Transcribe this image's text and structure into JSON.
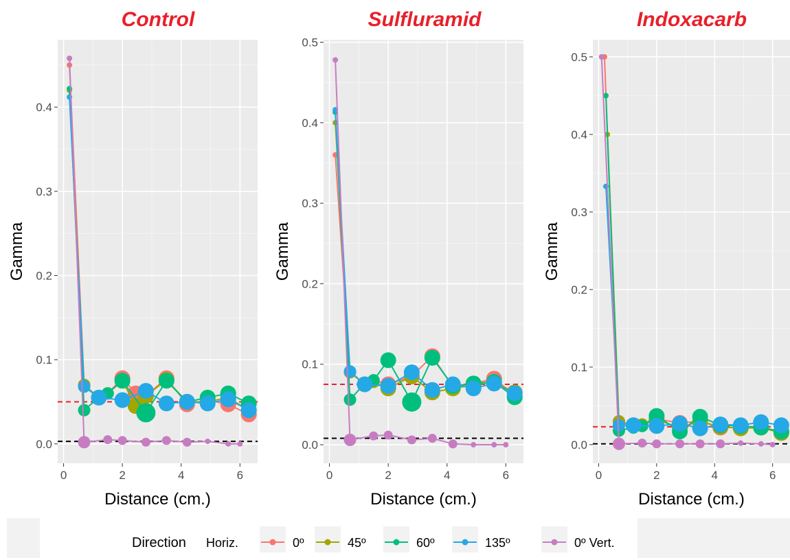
{
  "legend": {
    "title": "Direction",
    "entries": [
      {
        "label": "Horiz.",
        "kind": "text"
      },
      {
        "label": "0º",
        "color": "#F8766D"
      },
      {
        "label": "45º",
        "color": "#A3A500"
      },
      {
        "label": "60º",
        "color": "#00BF7D"
      },
      {
        "label": "135º",
        "color": "#25A8E6"
      },
      {
        "label": "0º Vert.",
        "color": "#C77CC2"
      }
    ]
  },
  "chart_data": [
    {
      "type": "scatter",
      "title": "Control",
      "xlabel": "Distance (cm.)",
      "ylabel": "Gamma",
      "xlim": [
        -0.2,
        6.6
      ],
      "ylim": [
        -0.023,
        0.48
      ],
      "xticks": [
        0,
        2,
        4,
        6
      ],
      "xtick_labels": [
        "0",
        "2",
        "4",
        "6"
      ],
      "yticks": [
        0.0,
        0.1,
        0.2,
        0.3,
        0.4
      ],
      "ytick_labels": [
        "0.0",
        "0.1",
        "0.2",
        "0.3",
        "0.4"
      ],
      "reference_lines": [
        {
          "y": 0.05,
          "color": "#e8202a",
          "style": "dashed"
        },
        {
          "y": 0.003,
          "color": "#000000",
          "style": "dashed"
        }
      ],
      "series": [
        {
          "name": "0º",
          "color": "#F8766D",
          "x": [
            0.2,
            0.7,
            1.2,
            1.5,
            2.0,
            2.45,
            2.8,
            3.5,
            4.2,
            4.9,
            5.6,
            6.3
          ],
          "y": [
            0.45,
            0.07,
            0.055,
            0.06,
            0.078,
            0.06,
            0.057,
            0.078,
            0.047,
            0.052,
            0.047,
            0.035
          ],
          "size": [
            1,
            3,
            3,
            3,
            4,
            4,
            4,
            4,
            4,
            4,
            4,
            4
          ]
        },
        {
          "name": "45º",
          "color": "#A3A500",
          "x": [
            0.2,
            0.7,
            1.2,
            1.5,
            2.0,
            2.45,
            2.8,
            3.5,
            4.2,
            4.9,
            5.6,
            6.3
          ],
          "y": [
            0.42,
            0.07,
            0.055,
            0.06,
            0.075,
            0.045,
            0.057,
            0.076,
            0.05,
            0.05,
            0.055,
            0.04
          ],
          "size": [
            1,
            3,
            3,
            3,
            4,
            4,
            4,
            4,
            4,
            4,
            4,
            4
          ]
        },
        {
          "name": "60º",
          "color": "#00BF7D",
          "x": [
            0.2,
            0.7,
            1.2,
            1.5,
            2.0,
            2.8,
            3.5,
            4.2,
            4.9,
            5.6,
            6.3
          ],
          "y": [
            0.422,
            0.04,
            0.055,
            0.06,
            0.075,
            0.037,
            0.075,
            0.05,
            0.055,
            0.06,
            0.048
          ],
          "size": [
            1,
            3,
            3,
            3,
            4,
            5,
            4,
            4,
            4,
            4,
            4
          ]
        },
        {
          "name": "135º",
          "color": "#25A8E6",
          "x": [
            0.2,
            0.7,
            1.2,
            2.0,
            2.8,
            3.5,
            4.2,
            4.9,
            5.6,
            6.3
          ],
          "y": [
            0.412,
            0.068,
            0.055,
            0.052,
            0.063,
            0.048,
            0.05,
            0.048,
            0.053,
            0.04
          ],
          "size": [
            1,
            3,
            4,
            4,
            4,
            4,
            4,
            4,
            4,
            4
          ]
        },
        {
          "name": "0º Vert.",
          "color": "#C77CC2",
          "x": [
            0.2,
            0.7,
            1.5,
            2.0,
            2.8,
            3.5,
            4.2,
            4.9,
            5.6,
            6.0
          ],
          "y": [
            0.458,
            0.002,
            0.005,
            0.004,
            0.002,
            0.004,
            0.002,
            0.003,
            0.0,
            0.0
          ],
          "size": [
            1,
            3,
            2,
            2,
            2,
            2,
            2,
            1,
            1,
            1
          ]
        }
      ]
    },
    {
      "type": "scatter",
      "title": "Sulfluramid",
      "xlabel": "Distance (cm.)",
      "ylabel": "Gamma",
      "xlim": [
        -0.2,
        6.6
      ],
      "ylim": [
        -0.023,
        0.503
      ],
      "xticks": [
        0,
        2,
        4,
        6
      ],
      "xtick_labels": [
        "0",
        "2",
        "4",
        "6"
      ],
      "yticks": [
        0.0,
        0.1,
        0.2,
        0.3,
        0.4,
        0.5
      ],
      "ytick_labels": [
        "0.0",
        "0.1",
        "0.2",
        "0.3",
        "0.4",
        "0.5"
      ],
      "reference_lines": [
        {
          "y": 0.075,
          "color": "#e8202a",
          "style": "dashed"
        },
        {
          "y": 0.008,
          "color": "#000000",
          "style": "dashed"
        }
      ],
      "series": [
        {
          "name": "0º",
          "color": "#F8766D",
          "x": [
            0.2,
            0.7,
            1.2,
            1.5,
            2.0,
            2.8,
            3.5,
            4.2,
            4.9,
            5.6,
            6.3
          ],
          "y": [
            0.36,
            0.09,
            0.075,
            0.08,
            0.075,
            0.085,
            0.11,
            0.072,
            0.076,
            0.082,
            0.062
          ],
          "size": [
            1,
            3,
            3,
            3,
            4,
            4,
            4,
            4,
            4,
            4,
            4
          ]
        },
        {
          "name": "45º",
          "color": "#A3A500",
          "x": [
            0.2,
            0.7,
            1.2,
            1.5,
            2.0,
            2.8,
            3.5,
            4.2,
            4.9,
            5.6,
            6.3
          ],
          "y": [
            0.4,
            0.09,
            0.075,
            0.078,
            0.07,
            0.085,
            0.065,
            0.07,
            0.074,
            0.078,
            0.065
          ],
          "size": [
            1,
            3,
            3,
            3,
            4,
            4,
            4,
            4,
            4,
            4,
            4
          ]
        },
        {
          "name": "60º",
          "color": "#00BF7D",
          "x": [
            0.2,
            0.7,
            1.2,
            1.5,
            2.0,
            2.8,
            3.5,
            4.2,
            4.9,
            5.6,
            6.3
          ],
          "y": [
            0.413,
            0.056,
            0.076,
            0.08,
            0.105,
            0.053,
            0.108,
            0.073,
            0.076,
            0.078,
            0.059
          ],
          "size": [
            1,
            3,
            3,
            3,
            4,
            5,
            4,
            4,
            4,
            4,
            4
          ]
        },
        {
          "name": "135º",
          "color": "#25A8E6",
          "x": [
            0.2,
            0.7,
            1.2,
            2.0,
            2.8,
            3.5,
            4.2,
            4.9,
            5.6,
            6.3
          ],
          "y": [
            0.416,
            0.091,
            0.075,
            0.073,
            0.09,
            0.068,
            0.075,
            0.07,
            0.076,
            0.064
          ],
          "size": [
            1,
            3,
            4,
            4,
            4,
            4,
            4,
            4,
            4,
            4
          ]
        },
        {
          "name": "0º Vert.",
          "color": "#C77CC2",
          "x": [
            0.2,
            0.7,
            1.5,
            2.0,
            2.8,
            3.5,
            4.2,
            4.9,
            5.6,
            6.0
          ],
          "y": [
            0.478,
            0.006,
            0.011,
            0.012,
            0.006,
            0.008,
            0.001,
            0.0,
            0.0,
            0.0
          ],
          "size": [
            1,
            3,
            2,
            2,
            2,
            2,
            2,
            1,
            1,
            1
          ]
        }
      ]
    },
    {
      "type": "scatter",
      "title": "Indoxacarb",
      "xlabel": "Distance (cm.)",
      "ylabel": "Gamma",
      "xlim": [
        -0.2,
        6.6
      ],
      "ylim": [
        -0.024,
        0.522
      ],
      "xticks": [
        0,
        2,
        4,
        6
      ],
      "xtick_labels": [
        "0",
        "2",
        "4",
        "6"
      ],
      "yticks": [
        0.0,
        0.1,
        0.2,
        0.3,
        0.4,
        0.5
      ],
      "ytick_labels": [
        "0.0",
        "0.1",
        "0.2",
        "0.3",
        "0.4",
        "0.5"
      ],
      "reference_lines": [
        {
          "y": 0.023,
          "color": "#e8202a",
          "style": "dashed"
        },
        {
          "y": 0.001,
          "color": "#000000",
          "style": "dashed"
        }
      ],
      "series": [
        {
          "name": "0º",
          "color": "#F8766D",
          "x": [
            0.2,
            0.7,
            1.2,
            1.5,
            2.0,
            2.8,
            3.5,
            4.2,
            4.9,
            5.6,
            6.3
          ],
          "y": [
            0.5,
            0.03,
            0.025,
            0.025,
            0.033,
            0.028,
            0.03,
            0.022,
            0.022,
            0.023,
            0.016
          ],
          "size": [
            1,
            3,
            3,
            3,
            4,
            4,
            4,
            4,
            4,
            4,
            4
          ]
        },
        {
          "name": "45º",
          "color": "#A3A500",
          "x": [
            0.3,
            0.7,
            1.2,
            1.5,
            2.0,
            2.8,
            3.5,
            4.2,
            4.9,
            5.6,
            6.3
          ],
          "y": [
            0.4,
            0.03,
            0.024,
            0.026,
            0.032,
            0.022,
            0.03,
            0.023,
            0.021,
            0.022,
            0.015
          ],
          "size": [
            1,
            3,
            3,
            3,
            4,
            4,
            4,
            4,
            4,
            4,
            4
          ]
        },
        {
          "name": "60º",
          "color": "#00BF7D",
          "x": [
            0.25,
            0.7,
            1.2,
            1.5,
            2.0,
            2.8,
            3.5,
            4.2,
            4.9,
            5.6,
            6.3
          ],
          "y": [
            0.45,
            0.018,
            0.022,
            0.024,
            0.037,
            0.017,
            0.036,
            0.025,
            0.024,
            0.022,
            0.017
          ],
          "size": [
            1,
            3,
            3,
            3,
            4,
            4,
            4,
            4,
            4,
            4,
            4
          ]
        },
        {
          "name": "135º",
          "color": "#25A8E6",
          "x": [
            0.25,
            0.7,
            1.2,
            2.0,
            2.8,
            3.5,
            4.2,
            4.9,
            5.6,
            6.3
          ],
          "y": [
            0.333,
            0.025,
            0.025,
            0.024,
            0.027,
            0.021,
            0.026,
            0.025,
            0.029,
            0.025
          ],
          "size": [
            1,
            3,
            4,
            4,
            4,
            4,
            4,
            4,
            4,
            4
          ]
        },
        {
          "name": "0º Vert.",
          "color": "#C77CC2",
          "x": [
            0.1,
            0.7,
            1.5,
            2.0,
            2.8,
            3.5,
            4.2,
            4.9,
            5.6,
            6.0
          ],
          "y": [
            0.5,
            0.001,
            0.002,
            0.001,
            0.001,
            0.001,
            0.001,
            0.002,
            0.001,
            0.0
          ],
          "size": [
            1,
            3,
            2,
            2,
            2,
            2,
            2,
            1,
            1,
            1
          ]
        }
      ]
    }
  ]
}
